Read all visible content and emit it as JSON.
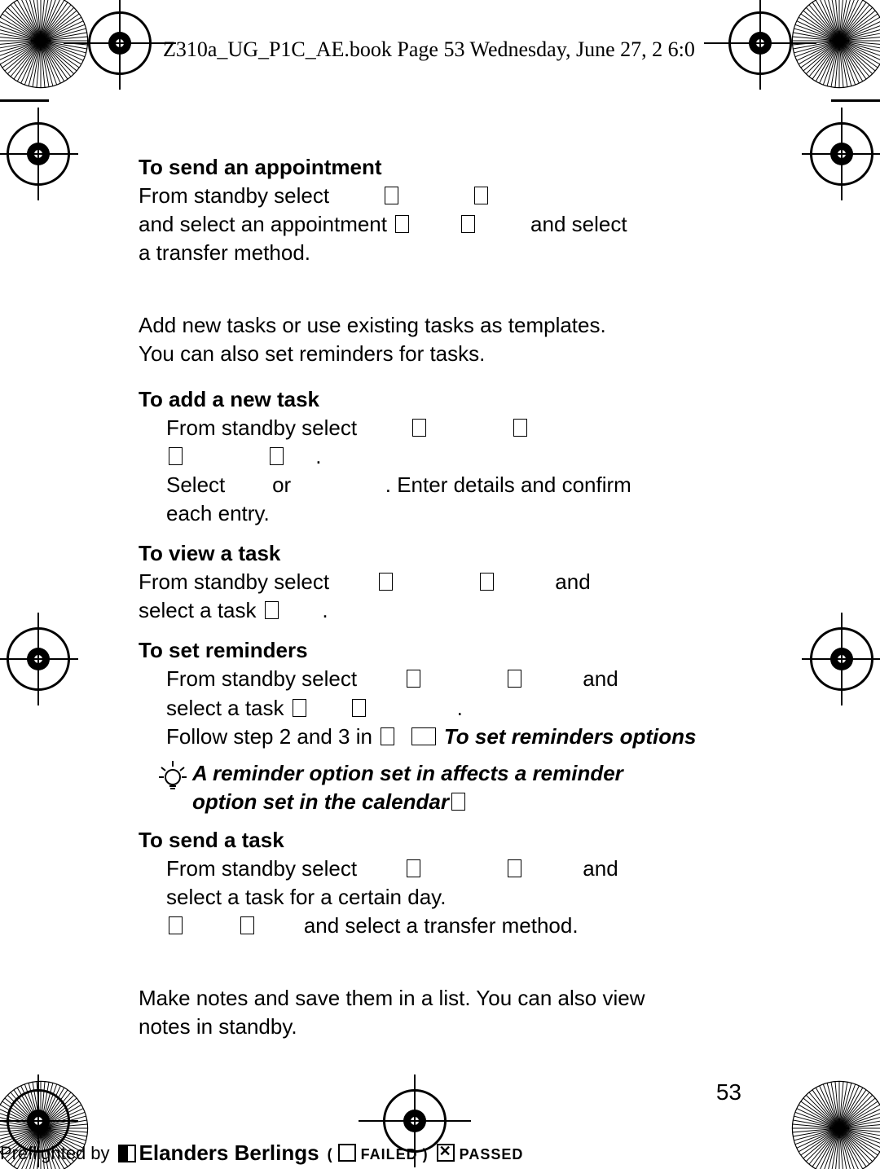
{
  "header": {
    "text": "Z310a_UG_P1C_AE.book  Page 53  Wednesday, June 27, 2        6:0"
  },
  "page_number": "53",
  "sections": {
    "s1_title": "To send an appointment",
    "s1_l1a": "From standby select ",
    "s1_l1b": "",
    "s1_l2a": "and select an appointment ",
    "s1_l2b": " and select",
    "s1_l3": "a transfer method.",
    "tasks_intro1": "Add new tasks or use existing tasks as templates.",
    "tasks_intro2": "You can also set reminders for tasks.",
    "s2_title": "To add a new task",
    "s2_l1": "From standby select ",
    "s2_l2": ".",
    "s2_l3a": "Select",
    "s2_l3b": "or",
    "s2_l3c": ". Enter details and confirm",
    "s2_l4": "each entry.",
    "s3_title": "To view a task",
    "s3_l1a": "From standby select ",
    "s3_l1b": "and",
    "s3_l2a": "select a task ",
    "s3_l2b": ".",
    "s4_title": "To set reminders",
    "s4_l1a": "From standby select ",
    "s4_l1b": "and",
    "s4_l2a": "select a task ",
    "s4_l2b": ".",
    "s4_l3a": "Follow step 2 and 3 in ",
    "s4_l3b": "To set reminders options",
    "tip1": "A reminder option set in            affects a reminder",
    "tip2": "option set in the calendar",
    "s5_title": "To send a task",
    "s5_l1a": "From standby select ",
    "s5_l1b": "and",
    "s5_l2": "select a task for a certain day.",
    "s5_l3": "and select a transfer method.",
    "notes1": "Make notes and save them in a list. You can also view",
    "notes2": "notes in standby."
  },
  "footer": {
    "preflight": "Preflighted by",
    "brand": "Elanders Berlings",
    "failed": "FAILED",
    "passed": "PASSED"
  },
  "style": {
    "body_font_size": 26,
    "header_font_family": "Times New Roman",
    "text_color": "#000000",
    "background": "#ffffff"
  }
}
